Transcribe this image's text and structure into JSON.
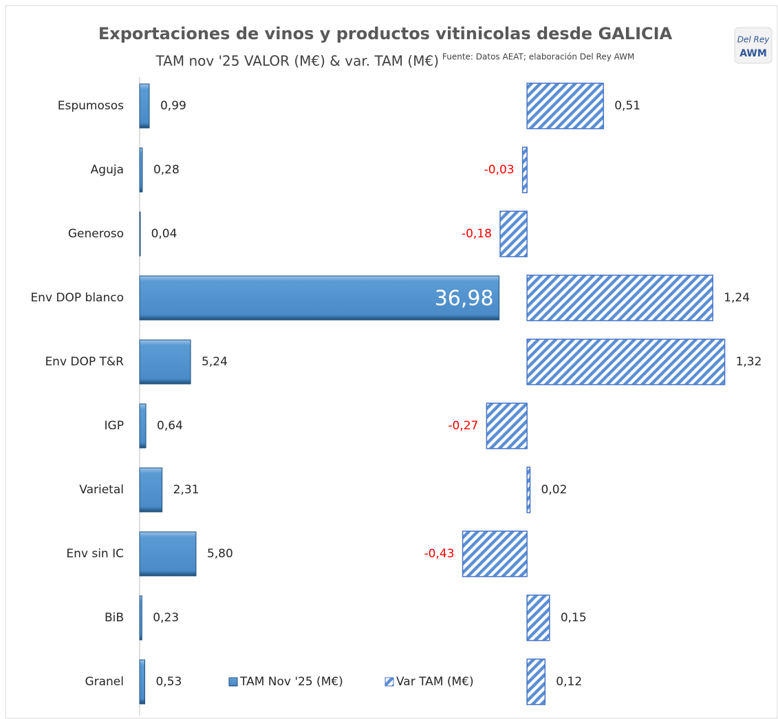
{
  "chart_data": {
    "type": "bar",
    "orientation": "horizontal",
    "title": "Exportaciones de vinos y productos vitinicolas desde GALICIA",
    "subtitle": "TAM nov '25 VALOR (M€) & var. TAM (M€)",
    "source": "Fuente: Datos AEAT; elaboración Del Rey AWM",
    "logo": [
      "Del Rey",
      "AWM"
    ],
    "categories": [
      "Espumosos",
      "Aguja",
      "Generoso",
      "Env DOP blanco",
      "Env DOP T&R",
      "IGP",
      "Varietal",
      "Env sin IC",
      "BiB",
      "Granel"
    ],
    "negative_label_color": "#ff0000",
    "series": [
      {
        "name": "TAM Nov '25 (M€)",
        "color": "#5b9bd5",
        "style": "bevel",
        "xlim": [
          0,
          38
        ],
        "values": [
          0.99,
          0.28,
          0.04,
          36.98,
          5.24,
          0.64,
          2.31,
          5.8,
          0.23,
          0.53
        ],
        "value_labels": [
          "0,99",
          "0,28",
          "0,04",
          "36,98",
          "5,24",
          "0,64",
          "2,31",
          "5,80",
          "0,23",
          "0,53"
        ]
      },
      {
        "name": "Var TAM (M€)",
        "color": "#4472c4",
        "style": "hatch",
        "xlim": [
          -0.8,
          1.4
        ],
        "values": [
          0.51,
          -0.03,
          -0.18,
          1.24,
          1.32,
          -0.27,
          0.02,
          -0.43,
          0.15,
          0.12
        ],
        "value_labels": [
          "0,51",
          "-0,03",
          "-0,18",
          "1,24",
          "1,32",
          "-0,27",
          "0,02",
          "-0,43",
          "0,15",
          "0,12"
        ]
      }
    ]
  }
}
